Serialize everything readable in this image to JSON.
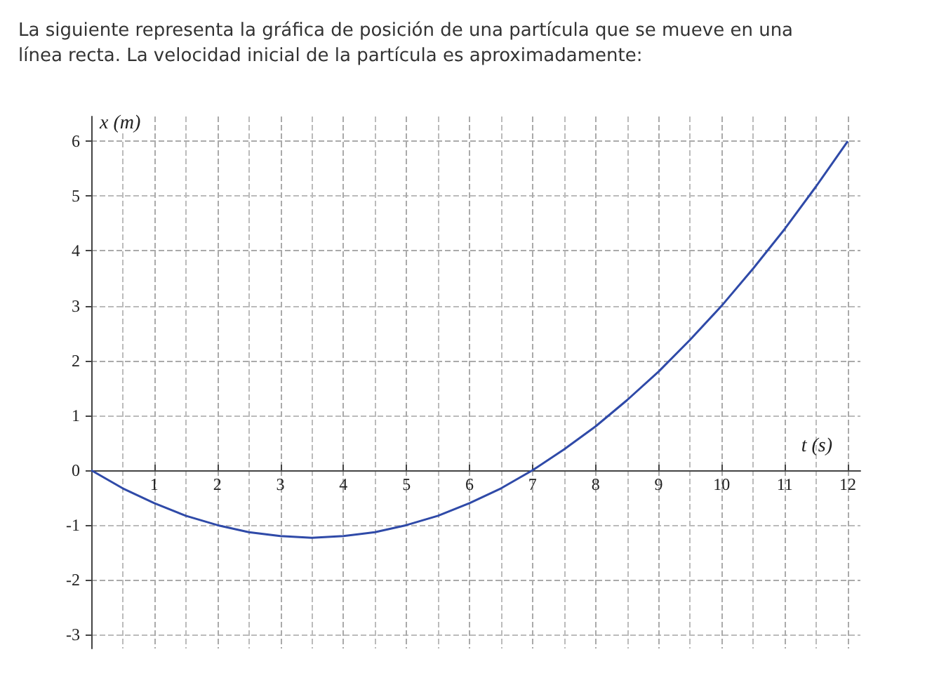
{
  "chart_data": {
    "type": "line",
    "title": "La siguiente representa la gráfica de posición de una partícula que se mueve en una línea recta. La velocidad inicial de la partícula es aproximadamente:",
    "xlabel": "t (s)",
    "ylabel": "x (m)",
    "x": [
      0,
      0.5,
      1,
      1.5,
      2,
      2.5,
      3,
      3.5,
      4,
      4.5,
      5,
      5.5,
      6,
      6.5,
      7,
      7.5,
      8,
      8.5,
      9,
      9.5,
      10,
      10.5,
      11,
      11.5,
      12
    ],
    "series": [
      {
        "color": "#2f4aa8",
        "values": [
          0,
          -0.33,
          -0.6,
          -0.83,
          -1.0,
          -1.13,
          -1.2,
          -1.23,
          -1.2,
          -1.13,
          -1.0,
          -0.83,
          -0.6,
          -0.33,
          0,
          0.38,
          0.8,
          1.28,
          1.8,
          2.38,
          3.0,
          3.68,
          4.4,
          5.18,
          6.0
        ]
      }
    ],
    "xlim": [
      0,
      12.2
    ],
    "xticks": [
      1,
      2,
      3,
      4,
      5,
      6,
      7,
      8,
      9,
      10,
      11,
      12
    ],
    "ylim": [
      -3.25,
      6.45
    ],
    "yticks": [
      -3,
      -2,
      -1,
      0,
      1,
      2,
      3,
      4,
      5,
      6
    ],
    "grid": true,
    "marker": "none",
    "line_style": "solid"
  }
}
